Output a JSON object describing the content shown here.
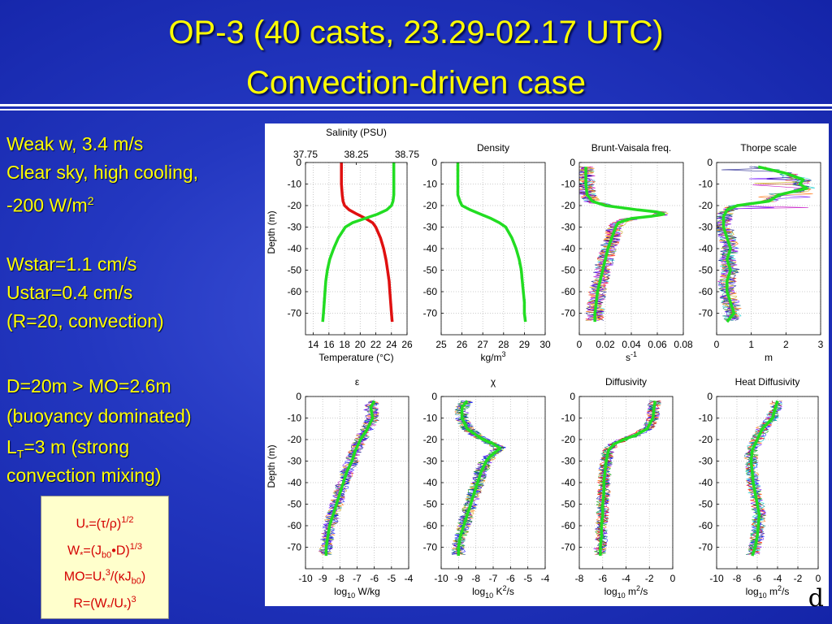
{
  "title": {
    "line1": "OP-3 (40 casts, 23.29-02.17 UTC)",
    "line2": "Convection-driven case"
  },
  "notes": {
    "wind": "Weak w, 3.4 m/s",
    "sky": "Clear sky, high cooling,",
    "flux_value": "-200 W/m",
    "flux_exp": "2",
    "wstar": "Wstar=1.1 cm/s",
    "ustar": "Ustar=0.4 cm/s",
    "ratio": "(R=20, convection)",
    "depth": "D=20m > MO=2.6m",
    "buoyancy": "(buoyancy dominated)",
    "thorpe_prefix": "L",
    "thorpe_sub": "T",
    "thorpe_suffix": "=3 m (strong",
    "thorpe_cont": "convection mixing)"
  },
  "formulas": {
    "u_star_a": "U",
    "u_star_b": "*",
    "u_star_c": "=(τ/ρ)",
    "u_star_exp": "1/2",
    "w_star_a": "W",
    "w_star_b": "*",
    "w_star_c": "=(J",
    "w_star_sub": "b0",
    "w_star_d": "•D)",
    "w_star_exp": "1/3",
    "mo_a": "MO=U",
    "mo_b": "*",
    "mo_exp": "3",
    "mo_c": "/(κJ",
    "mo_sub": "b0",
    "mo_d": ")",
    "r_a": "R=(W",
    "r_b": "*",
    "r_c": "/U",
    "r_d": "*",
    "r_e": ")",
    "r_exp": "3"
  },
  "corner_letter": "d",
  "colors": {
    "background": "#2337c0",
    "title_text": "#ffff00",
    "mean_profile": "#22dd22",
    "temperature_mean": "#e01010",
    "formula_box_bg": "#ffffcc",
    "formula_text": "#d40000"
  },
  "chart_data": [
    {
      "type": "line",
      "panel": "salinity-temperature",
      "title": "Salinity  (PSU)",
      "top_ticks": [
        "37.75",
        "38.25",
        "38.75"
      ],
      "top_range": [
        37.75,
        38.75
      ],
      "xlabel": "Temperature (°C)",
      "ylabel": "Depth (m)",
      "xlim": [
        13,
        26
      ],
      "ylim": [
        -80,
        0
      ],
      "xticks": [
        "14",
        "16",
        "18",
        "20",
        "22",
        "24",
        "26"
      ],
      "yticks": [
        "0",
        "-10",
        "-20",
        "-30",
        "-40",
        "-50",
        "-60",
        "-70"
      ],
      "series": [
        {
          "depth": [
            0,
            -5,
            -10,
            -15,
            -18,
            -20,
            -22,
            -24,
            -26,
            -28,
            -30,
            -35,
            -40,
            -45,
            -50,
            -55,
            -60,
            -65,
            -70,
            -74
          ],
          "values": [
            17.6,
            17.6,
            17.6,
            17.7,
            17.8,
            18.0,
            18.6,
            19.6,
            20.7,
            21.6,
            22.0,
            22.6,
            23.0,
            23.3,
            23.5,
            23.7,
            23.8,
            23.9,
            24.0,
            24.1
          ]
        },
        {
          "depth": [
            0,
            -5,
            -10,
            -15,
            -18,
            -20,
            -22,
            -24,
            -26,
            -28,
            -30,
            -35,
            -40,
            -45,
            -50,
            -55,
            -60,
            -65,
            -70,
            -74
          ],
          "values": [
            24.3,
            24.3,
            24.3,
            24.3,
            24.2,
            24.0,
            23.4,
            22.2,
            20.6,
            19.0,
            18.1,
            17.2,
            16.6,
            16.1,
            15.8,
            15.6,
            15.5,
            15.4,
            15.3,
            15.2
          ]
        }
      ]
    },
    {
      "type": "line",
      "panel": "density",
      "title": "Density",
      "xlabel": "kg/m",
      "xlabel_exp": "3",
      "xlim": [
        25,
        30
      ],
      "ylim": [
        -80,
        0
      ],
      "xticks": [
        "25",
        "26",
        "27",
        "28",
        "29",
        "30"
      ],
      "yticks": [
        "0",
        "-10",
        "-20",
        "-30",
        "-40",
        "-50",
        "-60",
        "-70"
      ],
      "series": [
        {
          "depth": [
            0,
            -5,
            -10,
            -15,
            -18,
            -20,
            -22,
            -24,
            -26,
            -28,
            -30,
            -35,
            -40,
            -45,
            -50,
            -55,
            -60,
            -65,
            -70,
            -74
          ],
          "values": [
            25.8,
            25.8,
            25.8,
            25.8,
            25.9,
            26.0,
            26.4,
            26.9,
            27.4,
            27.8,
            28.1,
            28.4,
            28.6,
            28.75,
            28.85,
            28.9,
            28.95,
            29.0,
            29.0,
            29.05
          ]
        }
      ]
    },
    {
      "type": "line",
      "panel": "brunt-vaisala",
      "title": "Brunt-Vaisala freq.",
      "xlabel": "s",
      "xlabel_exp": "-1",
      "xlim": [
        0,
        0.08
      ],
      "ylim": [
        -80,
        0
      ],
      "xticks": [
        "0",
        "0.02",
        "0.04",
        "0.06",
        "0.08"
      ],
      "yticks": [
        "0",
        "-10",
        "-20",
        "-30",
        "-40",
        "-50",
        "-60",
        "-70"
      ],
      "series": [
        {
          "depth": [
            -2,
            -10,
            -15,
            -18,
            -20,
            -22,
            -23,
            -24,
            -25,
            -26,
            -28,
            -30,
            -35,
            -40,
            -45,
            -50,
            -55,
            -60,
            -65,
            -70,
            -74
          ],
          "values": [
            0.005,
            0.005,
            0.006,
            0.01,
            0.02,
            0.045,
            0.06,
            0.065,
            0.055,
            0.04,
            0.03,
            0.028,
            0.025,
            0.022,
            0.02,
            0.018,
            0.016,
            0.014,
            0.013,
            0.012,
            0.012
          ]
        }
      ]
    },
    {
      "type": "line",
      "panel": "thorpe-scale",
      "title": "Thorpe scale",
      "xlabel": "m",
      "xlim": [
        0,
        3
      ],
      "ylim": [
        -80,
        0
      ],
      "xticks": [
        "0",
        "1",
        "2",
        "3"
      ],
      "yticks": [
        "0",
        "-10",
        "-20",
        "-30",
        "-40",
        "-50",
        "-60",
        "-70"
      ],
      "series": [
        {
          "depth": [
            -2,
            -5,
            -8,
            -10,
            -12,
            -15,
            -18,
            -20,
            -22,
            -25,
            -30,
            -35,
            -40,
            -45,
            -50,
            -55,
            -60,
            -65,
            -70,
            -74
          ],
          "values": [
            1.2,
            2.0,
            2.5,
            2.4,
            2.6,
            1.8,
            1.5,
            0.6,
            0.3,
            0.2,
            0.2,
            0.3,
            0.4,
            0.3,
            0.4,
            0.3,
            0.3,
            0.4,
            0.5,
            0.3
          ]
        }
      ]
    },
    {
      "type": "line",
      "panel": "epsilon",
      "title": "ε",
      "xlabel": "log",
      "xlabel_sub": "10",
      "xlabel_suffix": " W/kg",
      "ylabel": "Depth (m)",
      "xlim": [
        -10,
        -4
      ],
      "ylim": [
        -80,
        0
      ],
      "xticks": [
        "-10",
        "-9",
        "-8",
        "-7",
        "-6",
        "-5",
        "-4"
      ],
      "yticks": [
        "0",
        "-10",
        "-20",
        "-30",
        "-40",
        "-50",
        "-60",
        "-70"
      ],
      "series": [
        {
          "depth": [
            -2,
            -5,
            -10,
            -15,
            -20,
            -25,
            -30,
            -35,
            -40,
            -45,
            -50,
            -55,
            -60,
            -65,
            -70,
            -74
          ],
          "values": [
            -6.0,
            -6.2,
            -6.1,
            -6.4,
            -6.8,
            -7.1,
            -7.3,
            -7.6,
            -7.8,
            -8.0,
            -8.2,
            -8.4,
            -8.6,
            -8.7,
            -8.8,
            -8.8
          ]
        }
      ]
    },
    {
      "type": "line",
      "panel": "chi",
      "title": "χ",
      "xlabel": "log",
      "xlabel_sub": "10",
      "xlabel_suffix": " K",
      "xlabel_exp": "2",
      "xlabel_tail": "/s",
      "xlim": [
        -10,
        -4
      ],
      "ylim": [
        -80,
        0
      ],
      "xticks": [
        "-10",
        "-9",
        "-8",
        "-7",
        "-6",
        "-5",
        "-4"
      ],
      "yticks": [
        "0",
        "-10",
        "-20",
        "-30",
        "-40",
        "-50",
        "-60",
        "-70"
      ],
      "series": [
        {
          "depth": [
            -2,
            -5,
            -10,
            -15,
            -20,
            -22,
            -24,
            -26,
            -28,
            -30,
            -35,
            -40,
            -45,
            -50,
            -55,
            -60,
            -65,
            -70,
            -74
          ],
          "values": [
            -8.5,
            -8.8,
            -8.8,
            -8.5,
            -7.6,
            -7.0,
            -6.6,
            -6.9,
            -7.2,
            -7.4,
            -7.7,
            -7.9,
            -8.1,
            -8.3,
            -8.5,
            -8.7,
            -8.9,
            -9.0,
            -9.0
          ]
        }
      ]
    },
    {
      "type": "line",
      "panel": "diffusivity",
      "title": "Diffusivity",
      "xlabel": "log",
      "xlabel_sub": "10",
      "xlabel_suffix": " m",
      "xlabel_exp": "2",
      "xlabel_tail": "/s",
      "xlim": [
        -8,
        0
      ],
      "ylim": [
        -80,
        0
      ],
      "xticks": [
        "-8",
        "-6",
        "-4",
        "-2",
        "0"
      ],
      "yticks": [
        "0",
        "-10",
        "-20",
        "-30",
        "-40",
        "-50",
        "-60",
        "-70"
      ],
      "series": [
        {
          "depth": [
            -2,
            -5,
            -10,
            -15,
            -18,
            -20,
            -22,
            -25,
            -30,
            -35,
            -40,
            -45,
            -50,
            -55,
            -60,
            -65,
            -70,
            -74
          ],
          "values": [
            -1.5,
            -1.6,
            -1.7,
            -2.2,
            -3.2,
            -4.2,
            -5.0,
            -5.5,
            -5.7,
            -5.8,
            -5.9,
            -5.9,
            -6.0,
            -6.0,
            -6.1,
            -6.1,
            -6.2,
            -6.2
          ]
        }
      ]
    },
    {
      "type": "line",
      "panel": "heat-diffusivity",
      "title": "Heat Diffusivity",
      "xlabel": "log",
      "xlabel_sub": "10",
      "xlabel_suffix": " m",
      "xlabel_exp": "2",
      "xlabel_tail": "/s",
      "xlim": [
        -10,
        0
      ],
      "ylim": [
        -80,
        0
      ],
      "xticks": [
        "-10",
        "-8",
        "-6",
        "-4",
        "-2",
        "0"
      ],
      "yticks": [
        "0",
        "-10",
        "-20",
        "-30",
        "-40",
        "-50",
        "-60",
        "-70"
      ],
      "series": [
        {
          "depth": [
            -2,
            -5,
            -10,
            -15,
            -20,
            -25,
            -30,
            -35,
            -40,
            -45,
            -50,
            -55,
            -60,
            -65,
            -70,
            -74
          ],
          "values": [
            -4.0,
            -4.2,
            -4.5,
            -5.5,
            -6.0,
            -6.5,
            -6.6,
            -6.5,
            -6.4,
            -6.2,
            -6.0,
            -5.8,
            -5.9,
            -6.0,
            -6.2,
            -6.5
          ]
        }
      ]
    }
  ]
}
